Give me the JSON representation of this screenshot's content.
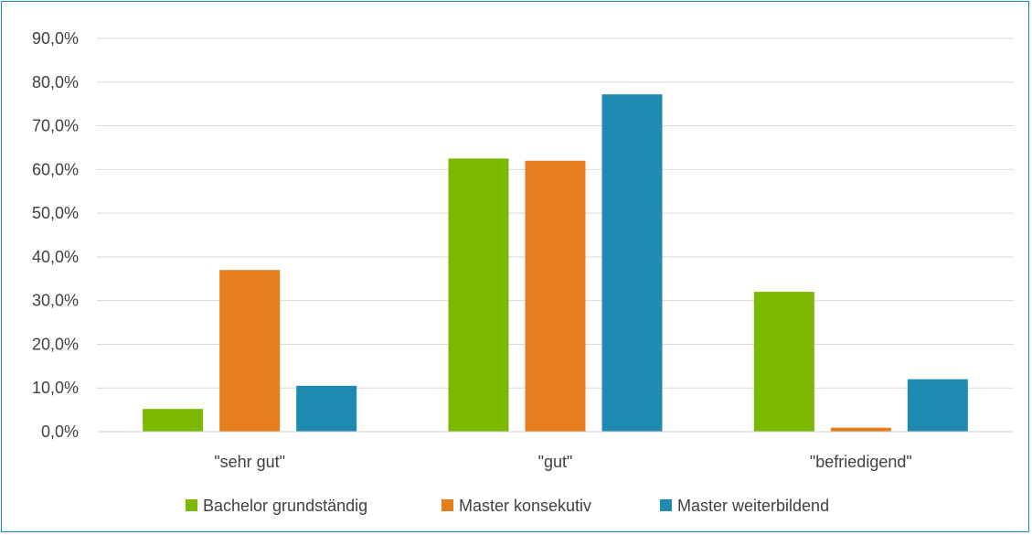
{
  "chart_data": {
    "type": "bar",
    "categories": [
      "\"sehr gut\"",
      "\"gut\"",
      "\"befriedigend\""
    ],
    "series": [
      {
        "name": "Bachelor grundständig",
        "values": [
          5.2,
          62.5,
          32.0
        ],
        "color": "#7cb800"
      },
      {
        "name": "Master konsekutiv",
        "values": [
          37.0,
          62.0,
          0.9
        ],
        "color": "#e67e1e"
      },
      {
        "name": "Master weiterbildend",
        "values": [
          10.5,
          77.2,
          12.0
        ],
        "color": "#1f8bb0"
      }
    ],
    "y_ticks": [
      "0,0%",
      "10,0%",
      "20,0%",
      "30,0%",
      "40,0%",
      "50,0%",
      "60,0%",
      "70,0%",
      "80,0%",
      "90,0%"
    ],
    "ylim": [
      0,
      90
    ],
    "grid": true,
    "legend_position": "bottom"
  }
}
